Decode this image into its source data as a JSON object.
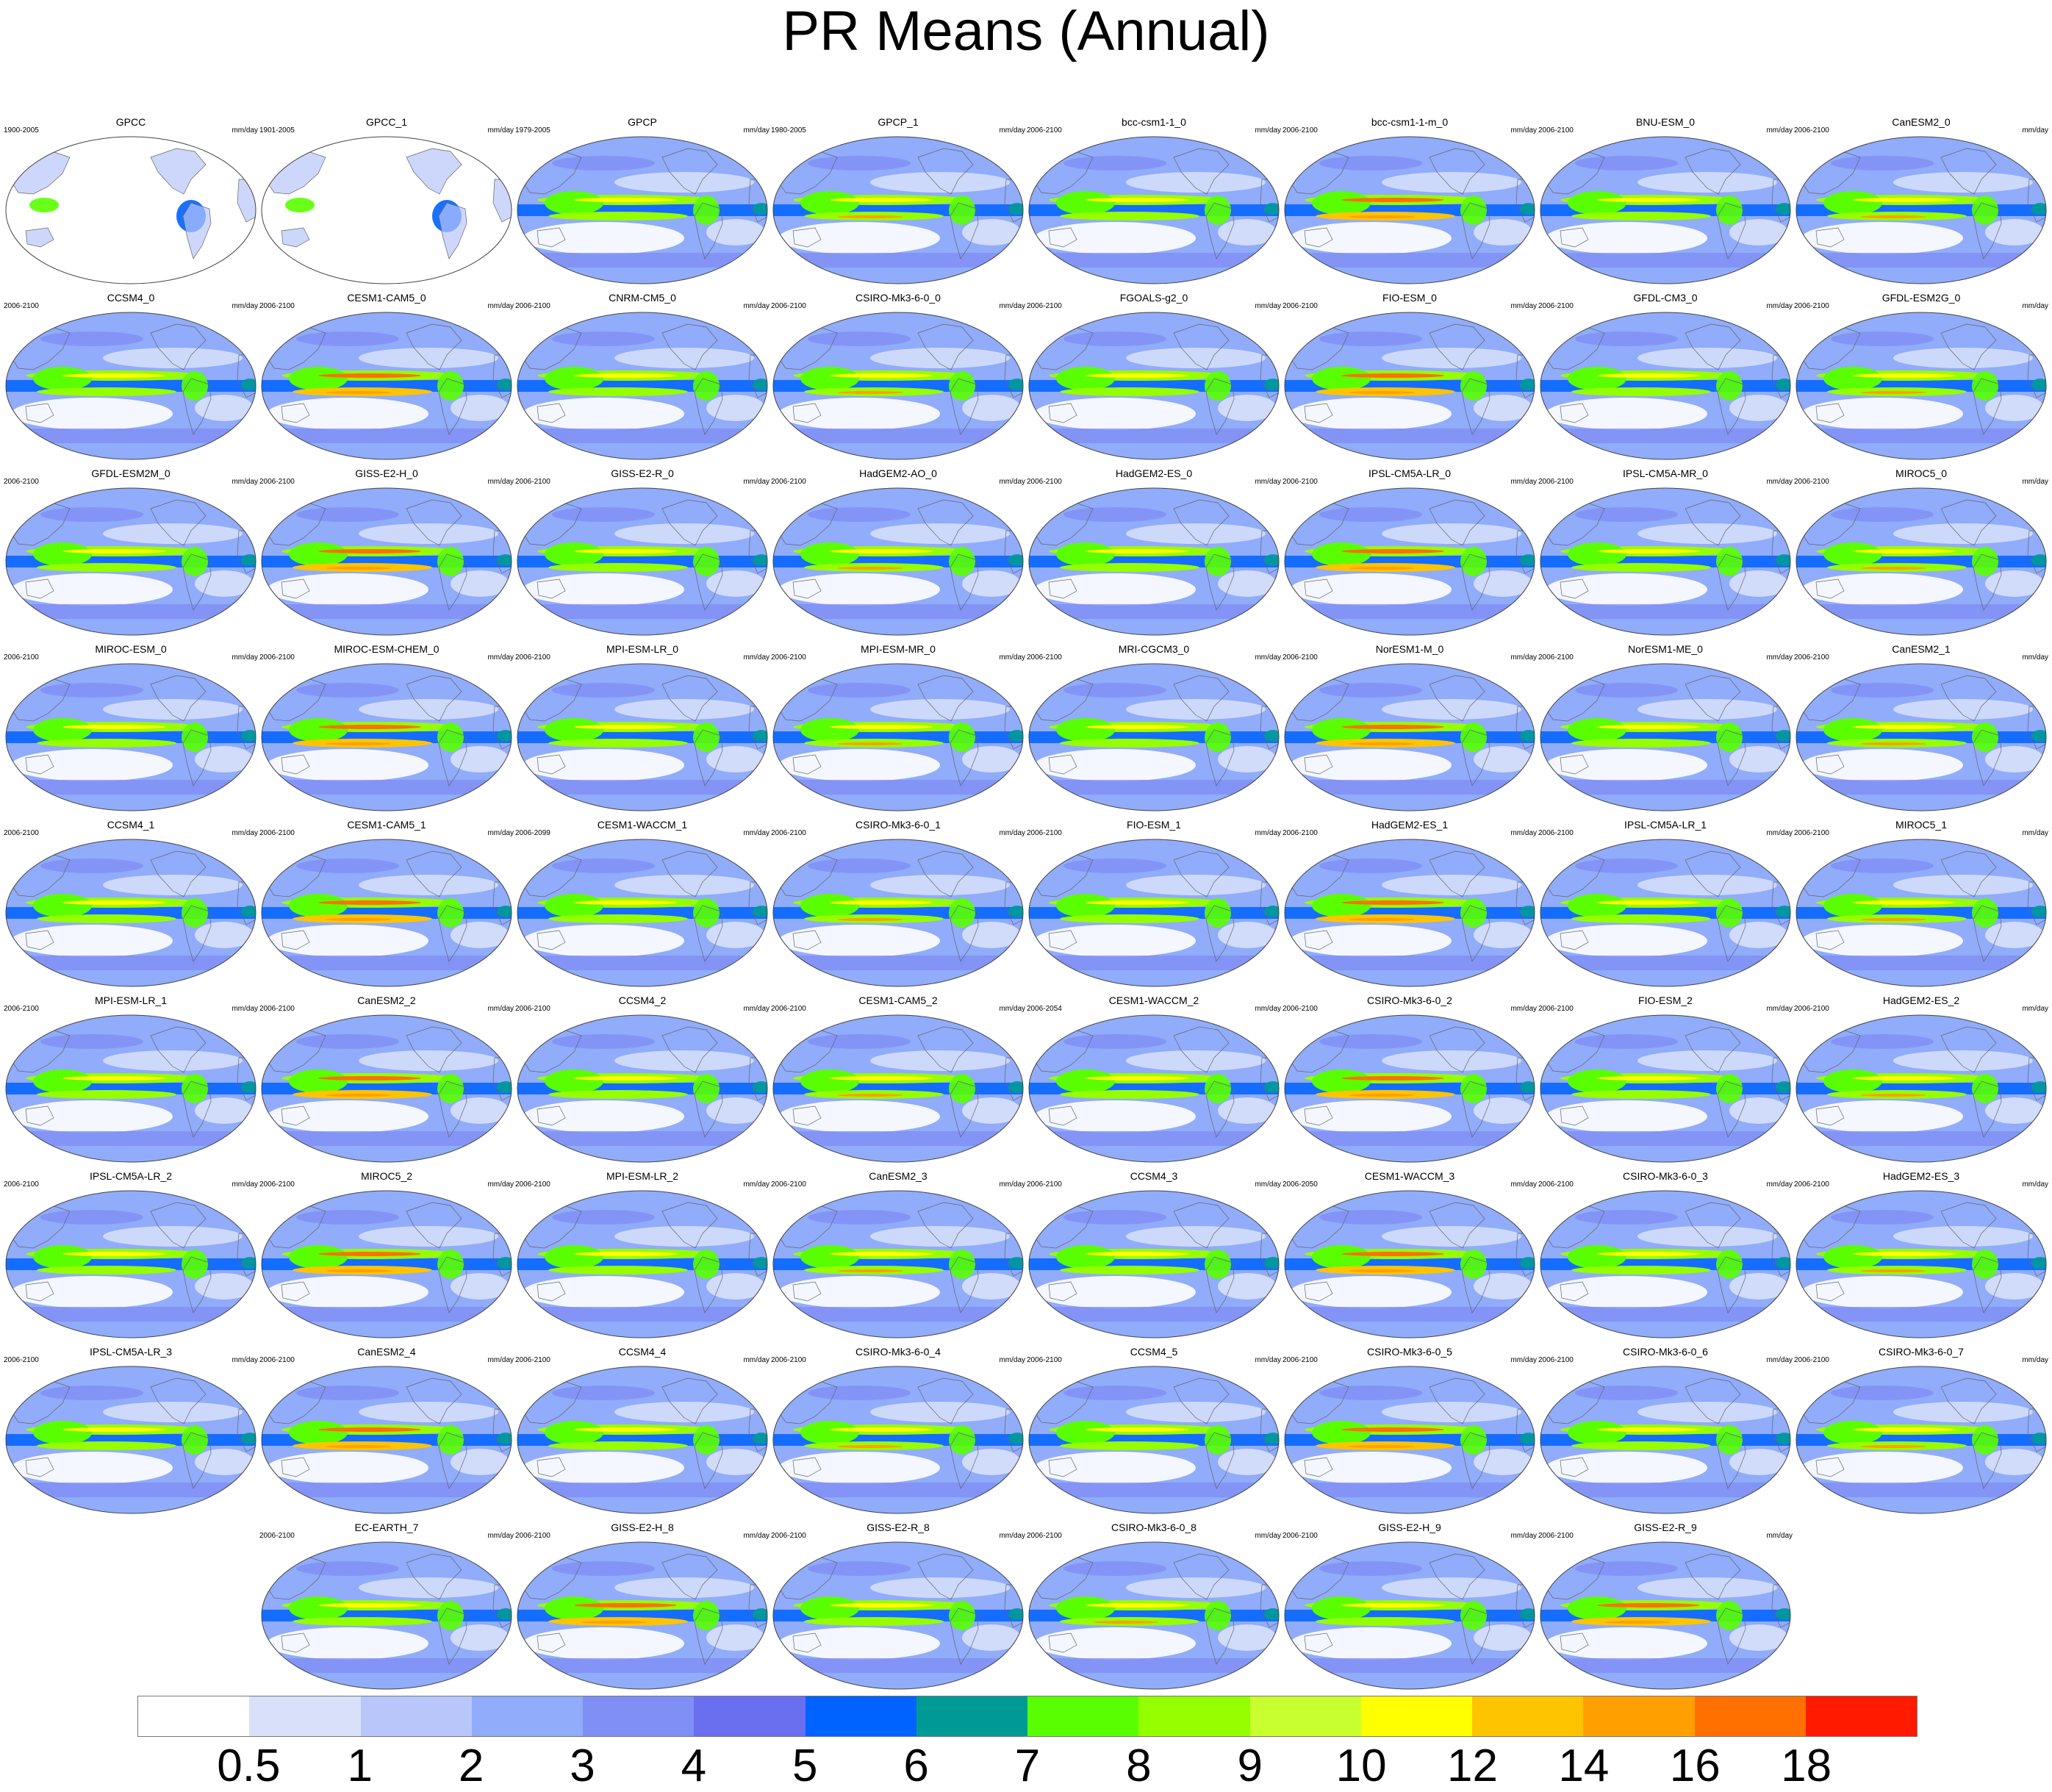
{
  "title": "PR Means (Annual)",
  "chart_data": {
    "type": "heatmap",
    "title": "PR Means (Annual)",
    "units": "mm/day",
    "panels": [
      {
        "name": "GPCC",
        "years": "1900-2005"
      },
      {
        "name": "GPCC_1",
        "years": "1901-2005"
      },
      {
        "name": "GPCP",
        "years": "1979-2005"
      },
      {
        "name": "GPCP_1",
        "years": "1980-2005"
      },
      {
        "name": "bcc-csm1-1_0",
        "years": "2006-2100"
      },
      {
        "name": "bcc-csm1-1-m_0",
        "years": "2006-2100"
      },
      {
        "name": "BNU-ESM_0",
        "years": "2006-2100"
      },
      {
        "name": "CanESM2_0",
        "years": "2006-2100"
      },
      {
        "name": "CCSM4_0",
        "years": "2006-2100"
      },
      {
        "name": "CESM1-CAM5_0",
        "years": "2006-2100"
      },
      {
        "name": "CNRM-CM5_0",
        "years": "2006-2100"
      },
      {
        "name": "CSIRO-Mk3-6-0_0",
        "years": "2006-2100"
      },
      {
        "name": "FGOALS-g2_0",
        "years": "2006-2100"
      },
      {
        "name": "FIO-ESM_0",
        "years": "2006-2100"
      },
      {
        "name": "GFDL-CM3_0",
        "years": "2006-2100"
      },
      {
        "name": "GFDL-ESM2G_0",
        "years": "2006-2100"
      },
      {
        "name": "GFDL-ESM2M_0",
        "years": "2006-2100"
      },
      {
        "name": "GISS-E2-H_0",
        "years": "2006-2100"
      },
      {
        "name": "GISS-E2-R_0",
        "years": "2006-2100"
      },
      {
        "name": "HadGEM2-AO_0",
        "years": "2006-2100"
      },
      {
        "name": "HadGEM2-ES_0",
        "years": "2006-2100"
      },
      {
        "name": "IPSL-CM5A-LR_0",
        "years": "2006-2100"
      },
      {
        "name": "IPSL-CM5A-MR_0",
        "years": "2006-2100"
      },
      {
        "name": "MIROC5_0",
        "years": "2006-2100"
      },
      {
        "name": "MIROC-ESM_0",
        "years": "2006-2100"
      },
      {
        "name": "MIROC-ESM-CHEM_0",
        "years": "2006-2100"
      },
      {
        "name": "MPI-ESM-LR_0",
        "years": "2006-2100"
      },
      {
        "name": "MPI-ESM-MR_0",
        "years": "2006-2100"
      },
      {
        "name": "MRI-CGCM3_0",
        "years": "2006-2100"
      },
      {
        "name": "NorESM1-M_0",
        "years": "2006-2100"
      },
      {
        "name": "NorESM1-ME_0",
        "years": "2006-2100"
      },
      {
        "name": "CanESM2_1",
        "years": "2006-2100"
      },
      {
        "name": "CCSM4_1",
        "years": "2006-2100"
      },
      {
        "name": "CESM1-CAM5_1",
        "years": "2006-2100"
      },
      {
        "name": "CESM1-WACCM_1",
        "years": "2006-2099"
      },
      {
        "name": "CSIRO-Mk3-6-0_1",
        "years": "2006-2100"
      },
      {
        "name": "FIO-ESM_1",
        "years": "2006-2100"
      },
      {
        "name": "HadGEM2-ES_1",
        "years": "2006-2100"
      },
      {
        "name": "IPSL-CM5A-LR_1",
        "years": "2006-2100"
      },
      {
        "name": "MIROC5_1",
        "years": "2006-2100"
      },
      {
        "name": "MPI-ESM-LR_1",
        "years": "2006-2100"
      },
      {
        "name": "CanESM2_2",
        "years": "2006-2100"
      },
      {
        "name": "CCSM4_2",
        "years": "2006-2100"
      },
      {
        "name": "CESM1-CAM5_2",
        "years": "2006-2100"
      },
      {
        "name": "CESM1-WACCM_2",
        "years": "2006-2054"
      },
      {
        "name": "CSIRO-Mk3-6-0_2",
        "years": "2006-2100"
      },
      {
        "name": "FIO-ESM_2",
        "years": "2006-2100"
      },
      {
        "name": "HadGEM2-ES_2",
        "years": "2006-2100"
      },
      {
        "name": "IPSL-CM5A-LR_2",
        "years": "2006-2100"
      },
      {
        "name": "MIROC5_2",
        "years": "2006-2100"
      },
      {
        "name": "MPI-ESM-LR_2",
        "years": "2006-2100"
      },
      {
        "name": "CanESM2_3",
        "years": "2006-2100"
      },
      {
        "name": "CCSM4_3",
        "years": "2006-2100"
      },
      {
        "name": "CESM1-WACCM_3",
        "years": "2006-2050"
      },
      {
        "name": "CSIRO-Mk3-6-0_3",
        "years": "2006-2100"
      },
      {
        "name": "HadGEM2-ES_3",
        "years": "2006-2100"
      },
      {
        "name": "IPSL-CM5A-LR_3",
        "years": "2006-2100"
      },
      {
        "name": "CanESM2_4",
        "years": "2006-2100"
      },
      {
        "name": "CCSM4_4",
        "years": "2006-2100"
      },
      {
        "name": "CSIRO-Mk3-6-0_4",
        "years": "2006-2100"
      },
      {
        "name": "CCSM4_5",
        "years": "2006-2100"
      },
      {
        "name": "CSIRO-Mk3-6-0_5",
        "years": "2006-2100"
      },
      {
        "name": "CSIRO-Mk3-6-0_6",
        "years": "2006-2100"
      },
      {
        "name": "CSIRO-Mk3-6-0_7",
        "years": "2006-2100"
      },
      {
        "name": "EC-EARTH_7",
        "years": "2006-2100"
      },
      {
        "name": "GISS-E2-H_8",
        "years": "2006-2100"
      },
      {
        "name": "GISS-E2-R_8",
        "years": "2006-2100"
      },
      {
        "name": "CSIRO-Mk3-6-0_8",
        "years": "2006-2100"
      },
      {
        "name": "GISS-E2-H_9",
        "years": "2006-2100"
      },
      {
        "name": "GISS-E2-R_9",
        "years": "2006-2100"
      }
    ],
    "colorbar": {
      "labels": [
        "0.5",
        "1",
        "2",
        "3",
        "4",
        "5",
        "6",
        "7",
        "8",
        "9",
        "10",
        "12",
        "14",
        "16",
        "18"
      ],
      "colors": [
        "#ffffff",
        "#d8e0fa",
        "#b8c6fa",
        "#90acfa",
        "#7f8ff5",
        "#6a6ff0",
        "#0062ff",
        "#009a96",
        "#59ff00",
        "#95ff00",
        "#c8ff2e",
        "#ffff00",
        "#ffc400",
        "#ffa000",
        "#ff7000",
        "#ff1a00"
      ]
    }
  }
}
